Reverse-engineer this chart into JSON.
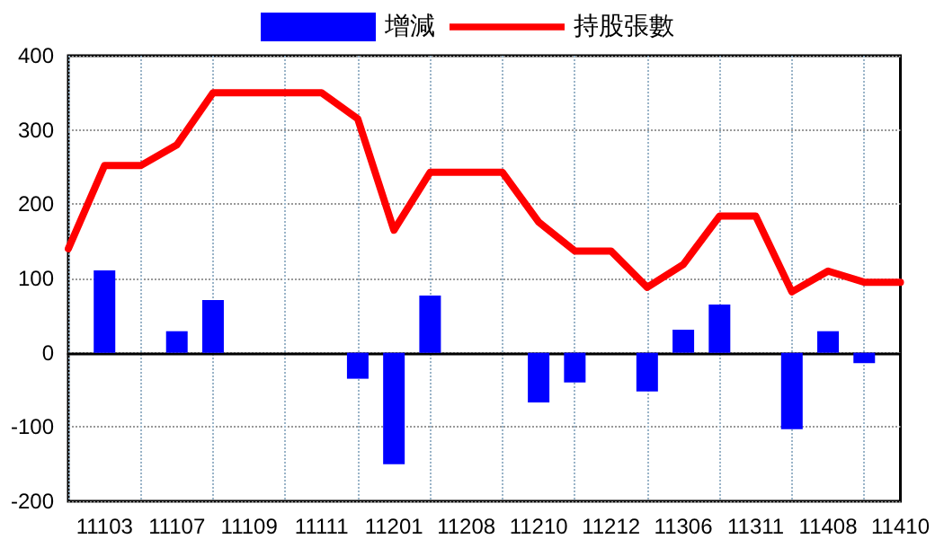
{
  "chart_data": {
    "type": "bar",
    "categories": [
      null,
      "11103",
      null,
      "11107",
      null,
      "11109",
      null,
      "11111",
      null,
      "11201",
      null,
      "11208",
      null,
      "11210",
      null,
      "11212",
      null,
      "11306",
      null,
      "11311",
      null,
      "11408",
      null,
      "11410"
    ],
    "series": [
      {
        "name": "增減",
        "color": "#0000ff",
        "values": [
          0,
          111,
          0,
          29,
          71,
          0,
          0,
          0,
          -35,
          -150,
          77,
          0,
          0,
          -67,
          -40,
          0,
          -52,
          31,
          65,
          0,
          -103,
          29,
          -14,
          0
        ]
      },
      {
        "name": "持股張數",
        "type": "line",
        "color": "#ff0000",
        "values": [
          140,
          252,
          252,
          280,
          350,
          350,
          350,
          350,
          315,
          165,
          243,
          243,
          243,
          176,
          137,
          137,
          88,
          119,
          184,
          184,
          82,
          110,
          95,
          95
        ]
      }
    ],
    "ylim": [
      -200,
      400
    ],
    "yticks": [
      -200,
      -100,
      0,
      100,
      200,
      300,
      400
    ],
    "grid": true,
    "legend": "top",
    "marker": "none",
    "line_style": "solid"
  }
}
